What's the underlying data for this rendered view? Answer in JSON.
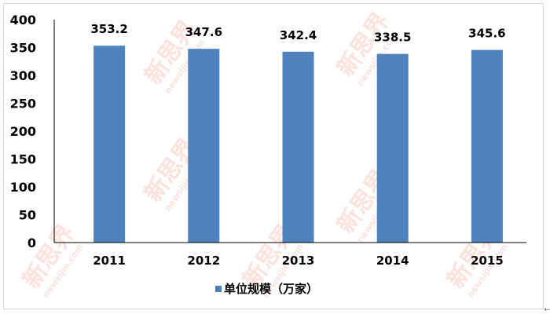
{
  "chart_data": {
    "type": "bar",
    "categories": [
      "2011",
      "2012",
      "2013",
      "2014",
      "2015"
    ],
    "series": [
      {
        "name": "单位规模（万家）",
        "values": [
          353.2,
          347.6,
          342.4,
          338.5,
          345.6
        ],
        "color": "#4f81bd"
      }
    ],
    "data_labels": [
      "353.2",
      "347.6",
      "342.4",
      "338.5",
      "345.6"
    ],
    "yticks": [
      "0",
      "50",
      "100",
      "150",
      "200",
      "250",
      "300",
      "350",
      "400"
    ],
    "ylim": [
      0,
      400
    ],
    "grid": false,
    "legend": "bottom"
  },
  "watermark": {
    "brand": "新思界",
    "url": "newsijie.com"
  }
}
